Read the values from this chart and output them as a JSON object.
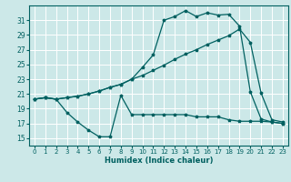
{
  "xlabel": "Humidex (Indice chaleur)",
  "bg_color": "#cce8e8",
  "grid_color": "#b8d8d8",
  "line_color": "#006060",
  "xlim": [
    -0.5,
    23.5
  ],
  "ylim": [
    14.0,
    33.0
  ],
  "xticks": [
    0,
    1,
    2,
    3,
    4,
    5,
    6,
    7,
    8,
    9,
    10,
    11,
    12,
    13,
    14,
    15,
    16,
    17,
    18,
    19,
    20,
    21,
    22,
    23
  ],
  "yticks": [
    15,
    17,
    19,
    21,
    23,
    25,
    27,
    29,
    31
  ],
  "series_top_x": [
    0,
    1,
    2,
    3,
    4,
    5,
    6,
    7,
    8,
    9,
    10,
    11,
    12,
    13,
    14,
    15,
    16,
    17,
    18,
    19,
    20,
    21,
    22,
    23
  ],
  "series_top_y": [
    20.3,
    20.5,
    20.3,
    20.5,
    20.7,
    21.0,
    21.4,
    21.9,
    22.3,
    23.0,
    24.6,
    26.3,
    31.0,
    31.5,
    32.3,
    31.5,
    32.0,
    31.7,
    31.8,
    30.2,
    21.3,
    17.6,
    17.2,
    17.0
  ],
  "series_mid_x": [
    0,
    1,
    2,
    3,
    4,
    5,
    6,
    7,
    8,
    9,
    10,
    11,
    12,
    13,
    14,
    15,
    16,
    17,
    18,
    19,
    20,
    21,
    22,
    23
  ],
  "series_mid_y": [
    20.3,
    20.5,
    20.3,
    20.5,
    20.7,
    21.0,
    21.4,
    21.9,
    22.3,
    23.0,
    23.5,
    24.2,
    24.9,
    25.7,
    26.4,
    27.0,
    27.7,
    28.3,
    28.9,
    29.8,
    28.0,
    21.1,
    17.5,
    17.2
  ],
  "series_bot_x": [
    0,
    1,
    2,
    3,
    4,
    5,
    6,
    7,
    8,
    9,
    10,
    11,
    12,
    13,
    14,
    15,
    16,
    17,
    18,
    19,
    20,
    21,
    22,
    23
  ],
  "series_bot_y": [
    20.3,
    20.5,
    20.3,
    18.5,
    17.2,
    16.1,
    15.2,
    15.2,
    20.8,
    18.2,
    18.2,
    18.2,
    18.2,
    18.2,
    18.2,
    17.9,
    17.9,
    17.9,
    17.5,
    17.3,
    17.3,
    17.3,
    17.2,
    17.0
  ]
}
